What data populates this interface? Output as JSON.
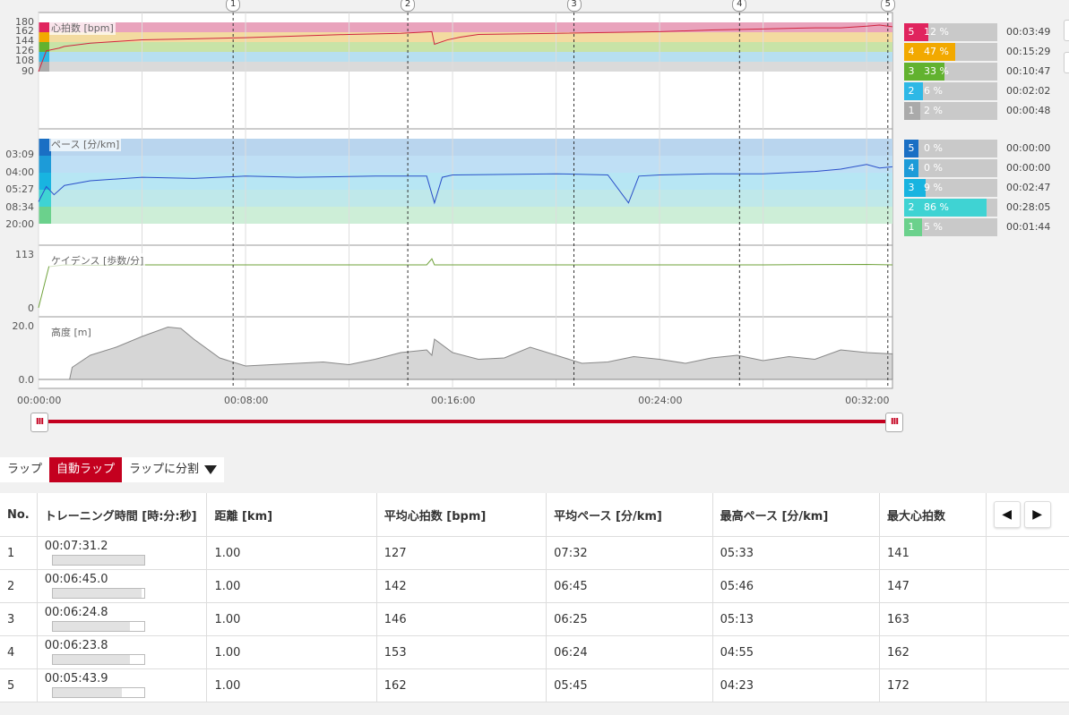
{
  "chart_data": [
    {
      "type": "line",
      "title": "心拍数 [bpm]",
      "ylim": [
        90,
        180
      ],
      "y_ticks": [
        "180",
        "162",
        "144",
        "126",
        "108",
        "90"
      ],
      "zones": [
        {
          "zone": 5,
          "range": [
            162,
            180
          ],
          "color": "#e9a3bc",
          "pct_label": "12 %",
          "pct": 12,
          "time": "00:03:49",
          "badge": "#e0245e"
        },
        {
          "zone": 4,
          "range": [
            144,
            162
          ],
          "color": "#f3dba0",
          "pct_label": "47 %",
          "pct": 47,
          "time": "00:15:29",
          "badge": "#f2a900"
        },
        {
          "zone": 3,
          "range": [
            126,
            144
          ],
          "color": "#c8e3a7",
          "pct_label": "33 %",
          "pct": 33,
          "time": "00:10:47",
          "badge": "#62b22f"
        },
        {
          "zone": 2,
          "range": [
            108,
            126
          ],
          "color": "#b7dff0",
          "pct_label": "6 %",
          "pct": 6,
          "time": "00:02:02",
          "badge": "#2eb8e6"
        },
        {
          "zone": 1,
          "range": [
            90,
            108
          ],
          "color": "#dadada",
          "pct_label": "2 %",
          "pct": 2,
          "time": "00:00:48",
          "badge": "#aaaaaa"
        }
      ],
      "series": [
        {
          "color": "#d0243f",
          "x": [
            0,
            0.3,
            0.8,
            1,
            2,
            3,
            4,
            6,
            8,
            10,
            12,
            14,
            15.2,
            15.3,
            15.8,
            16.3,
            17,
            20,
            24,
            26,
            28,
            30,
            31,
            32,
            32.5,
            33
          ],
          "y": [
            90,
            128,
            133,
            136,
            142,
            145,
            148,
            150,
            152,
            155,
            158,
            160,
            163,
            140,
            148,
            153,
            158,
            160,
            163,
            166,
            168,
            170,
            170,
            173,
            175,
            172
          ]
        }
      ]
    },
    {
      "type": "line",
      "title": "ペース [分/km]",
      "y_ticks": [
        "03:09",
        "04:00",
        "05:27",
        "08:34",
        "20:00"
      ],
      "zones": [
        {
          "zone": 5,
          "color": "#b9d5ee",
          "pct_label": "0 %",
          "pct": 0,
          "time": "00:00:00",
          "badge": "#1a6fc4"
        },
        {
          "zone": 4,
          "color": "#bfdff5",
          "pct_label": "0 %",
          "pct": 0,
          "time": "00:00:00",
          "badge": "#1d9bd8"
        },
        {
          "zone": 3,
          "color": "#b7e6f4",
          "pct_label": "9 %",
          "pct": 9,
          "time": "00:02:47",
          "badge": "#18b4e0"
        },
        {
          "zone": 2,
          "color": "#bfe8ea",
          "pct_label": "86 %",
          "pct": 86,
          "time": "00:28:05",
          "badge": "#3fd3d3"
        },
        {
          "zone": 1,
          "color": "#cdeed7",
          "pct_label": "5 %",
          "pct": 5,
          "time": "00:01:44",
          "badge": "#6bd18c"
        }
      ],
      "series": [
        {
          "color": "#2a4fc9",
          "x": [
            0,
            0.3,
            0.6,
            1,
            2,
            4,
            6,
            8,
            10,
            13,
            15,
            15.3,
            15.6,
            16,
            20,
            22,
            22.8,
            23.2,
            24,
            26,
            28,
            30,
            31,
            32,
            32.5,
            33
          ],
          "y": [
            8.8,
            7.5,
            8.2,
            7.4,
            7.0,
            6.7,
            6.8,
            6.6,
            6.7,
            6.6,
            6.6,
            8.9,
            6.7,
            6.5,
            6.4,
            6.5,
            8.9,
            6.6,
            6.5,
            6.4,
            6.4,
            6.2,
            6.0,
            5.6,
            5.9,
            5.8
          ]
        }
      ]
    },
    {
      "type": "line",
      "title": "ケイデンス [歩数/分]",
      "ylim": [
        0,
        113
      ],
      "y_ticks": [
        "113",
        "0"
      ],
      "series": [
        {
          "color": "#6fa23a",
          "x": [
            0,
            0.4,
            1,
            2,
            4,
            8,
            12,
            14.5,
            15,
            15.2,
            15.3,
            16,
            20,
            24,
            28,
            32,
            33
          ],
          "y": [
            0,
            88,
            92,
            91,
            92,
            92,
            92,
            92,
            92,
            105,
            92,
            92,
            92,
            92,
            92,
            93,
            92
          ]
        }
      ]
    },
    {
      "type": "area",
      "title": "高度 [m]",
      "ylim": [
        0,
        20
      ],
      "y_ticks": [
        "20.0",
        "0.0"
      ],
      "series": [
        {
          "color": "#888888",
          "fill": "#d6d6d6",
          "x": [
            0,
            1.2,
            1.3,
            2,
            3,
            4,
            5,
            5.5,
            6,
            7,
            8,
            9,
            10,
            11,
            12,
            13,
            14,
            15,
            15.2,
            15.3,
            16,
            17,
            18,
            19,
            20,
            21,
            22,
            23,
            24,
            25,
            26,
            27,
            28,
            29,
            30,
            31,
            32,
            33
          ],
          "y": [
            0,
            0,
            4.5,
            9,
            12,
            16,
            19.5,
            19,
            15,
            8,
            5,
            5.5,
            6,
            6.5,
            5.5,
            7.5,
            10,
            11,
            9,
            15,
            10,
            7.5,
            8,
            12,
            9,
            6,
            6.5,
            8.5,
            7.5,
            6,
            8,
            9,
            7,
            8.5,
            7.5,
            11,
            10,
            9.5
          ]
        }
      ]
    }
  ],
  "x_axis": {
    "ticks": [
      "00:00:00",
      "00:08:00",
      "00:16:00",
      "00:24:00",
      "00:32:00"
    ],
    "max_min": 33
  },
  "lap_markers": [
    {
      "label": "1",
      "t": 7.52
    },
    {
      "label": "2",
      "t": 14.27
    },
    {
      "label": "3",
      "t": 20.69
    },
    {
      "label": "4",
      "t": 27.09
    },
    {
      "label": "5",
      "t": 32.82
    }
  ],
  "slider": {
    "left_handle": "III",
    "right_handle": "III"
  },
  "tabs": {
    "lap": "ラップ",
    "auto_lap": "自動ラップ",
    "split": "ラップに分割"
  },
  "table": {
    "headers": [
      "No.",
      "トレーニング時間 [時:分:秒]",
      "距離 [km]",
      "平均心拍数 [bpm]",
      "平均ペース [分/km]",
      "最高ペース [分/km]",
      "最大心拍数"
    ],
    "nav": {
      "prev": "◀",
      "next": "▶"
    },
    "rows": [
      {
        "no": "1",
        "time": "00:07:31.2",
        "time_frac": 1.0,
        "dist": "1.00",
        "avg_hr": "127",
        "avg_pace": "07:32",
        "max_pace": "05:33",
        "max_hr": "141"
      },
      {
        "no": "2",
        "time": "00:06:45.0",
        "time_frac": 0.97,
        "dist": "1.00",
        "avg_hr": "142",
        "avg_pace": "06:45",
        "max_pace": "05:46",
        "max_hr": "147"
      },
      {
        "no": "3",
        "time": "00:06:24.8",
        "time_frac": 0.85,
        "dist": "1.00",
        "avg_hr": "146",
        "avg_pace": "06:25",
        "max_pace": "05:13",
        "max_hr": "163"
      },
      {
        "no": "4",
        "time": "00:06:23.8",
        "time_frac": 0.85,
        "dist": "1.00",
        "avg_hr": "153",
        "avg_pace": "06:24",
        "max_pace": "04:55",
        "max_hr": "162"
      },
      {
        "no": "5",
        "time": "00:05:43.9",
        "time_frac": 0.76,
        "dist": "1.00",
        "avg_hr": "162",
        "avg_pace": "05:45",
        "max_pace": "04:23",
        "max_hr": "172"
      }
    ]
  }
}
